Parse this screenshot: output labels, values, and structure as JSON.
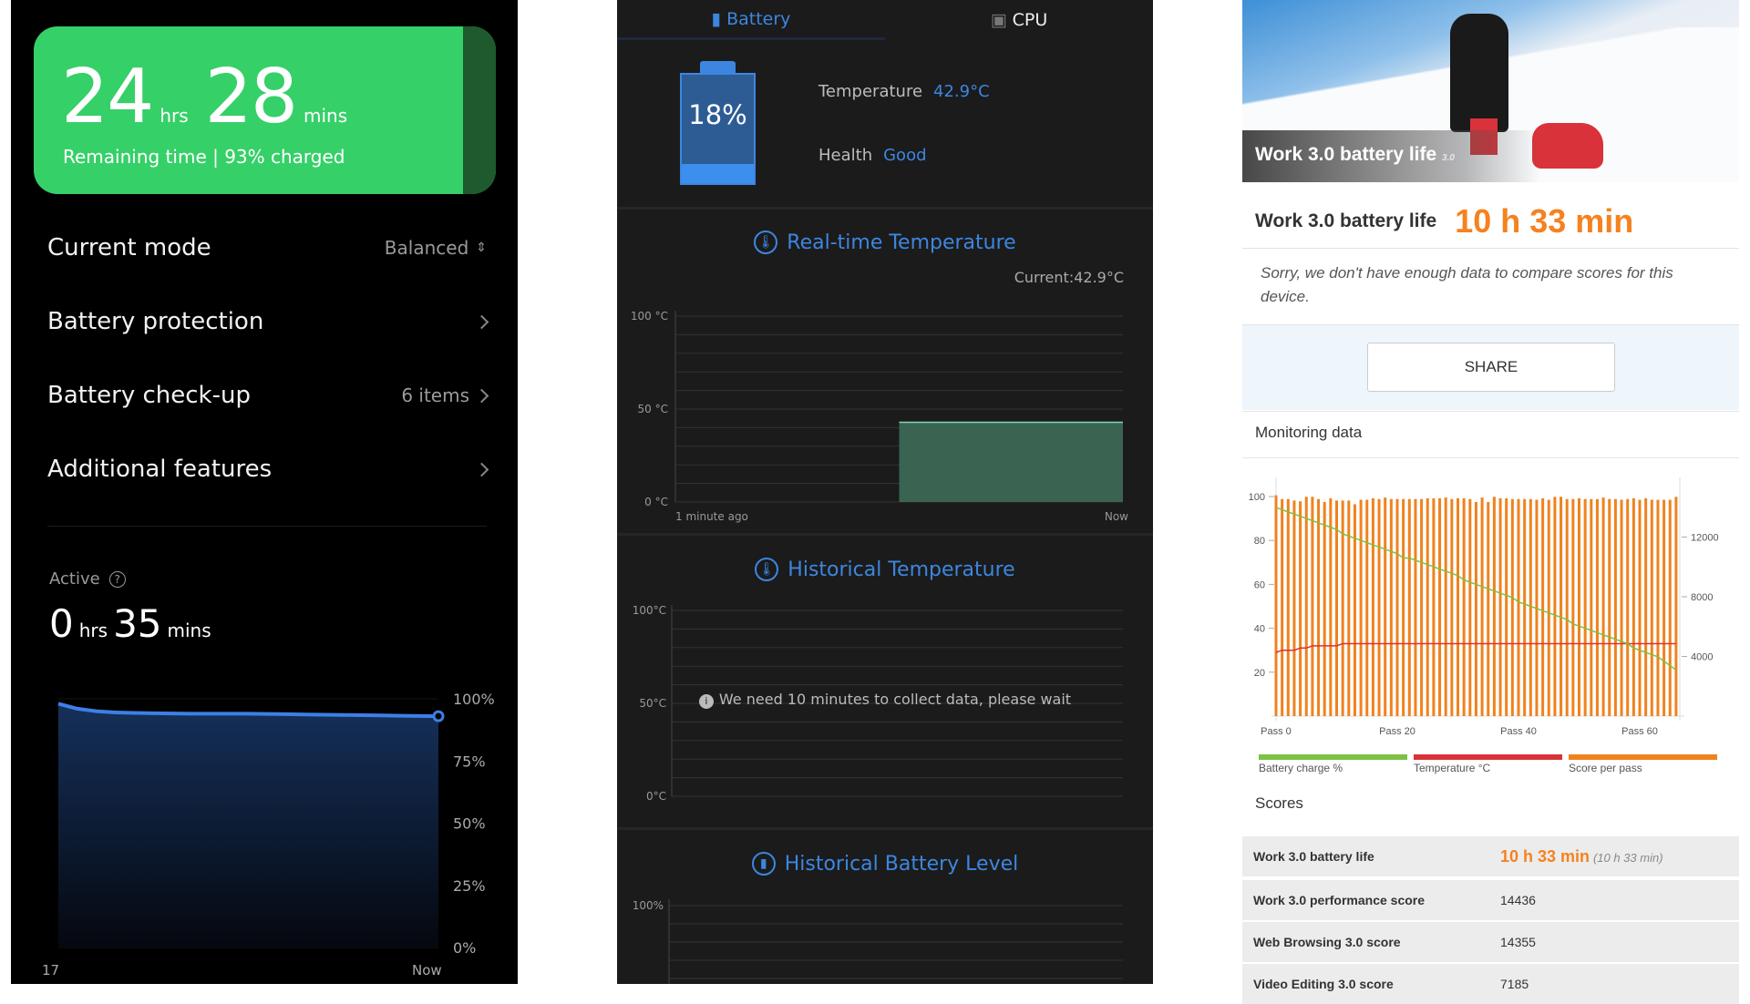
{
  "left": {
    "remaining": {
      "hours": "24",
      "hrs_unit": "hrs",
      "mins": "28",
      "mins_unit": "mins",
      "caption": "Remaining time | 93% charged"
    },
    "rows": [
      {
        "label": "Current mode",
        "value": "Balanced"
      },
      {
        "label": "Battery protection",
        "value": ""
      },
      {
        "label": "Battery check-up",
        "value": "6 items"
      },
      {
        "label": "Additional features",
        "value": ""
      }
    ],
    "active": {
      "label": "Active",
      "hours": "0",
      "hrs_unit": "hrs",
      "mins": "35",
      "mins_unit": "mins"
    },
    "chart_data": {
      "type": "area",
      "x_labels": [
        "17",
        "Now"
      ],
      "y_ticks": [
        "100%",
        "75%",
        "50%",
        "25%",
        "0%"
      ],
      "ylim": [
        0,
        100
      ],
      "values": [
        98,
        96,
        95,
        94.5,
        94.3,
        94.2,
        94.1,
        94,
        94,
        94,
        94,
        93.9,
        93.8,
        93.7,
        93.6,
        93.5,
        93.4,
        93.3,
        93.2,
        93.1,
        93
      ],
      "color": "#3d7fe6"
    }
  },
  "middle": {
    "tabs": [
      {
        "label": "Battery",
        "active": true
      },
      {
        "label": "CPU",
        "active": false
      }
    ],
    "battery_level": "18%",
    "battery_fraction": 0.18,
    "temperature_label": "Temperature",
    "temperature_value": "42.9°C",
    "health_label": "Health",
    "health_value": "Good",
    "realtime": {
      "title": "Real-time Temperature",
      "current": "Current:42.9°C",
      "chart_data": {
        "type": "area",
        "y_ticks": [
          "100 °C",
          "50 °C",
          "0 °C"
        ],
        "ylim": [
          0,
          100
        ],
        "x_labels": [
          "1 minute ago",
          "Now"
        ],
        "values": [
          null,
          42.9
        ],
        "color": "#3a6351"
      }
    },
    "historical_temp": {
      "title": "Historical Temperature",
      "y_ticks": [
        "100°C",
        "50°C",
        "0°C"
      ],
      "message": "We need 10 minutes to collect data, please wait"
    },
    "historical_battery": {
      "title": "Historical Battery Level",
      "y_ticks": [
        "100%"
      ]
    }
  },
  "right": {
    "hero_title": "Work 3.0 battery life",
    "hero_badge": "3.0",
    "result_label": "Work 3.0 battery life",
    "result_value": "10 h 33 min",
    "note": "Sorry, we don't have enough data to compare scores for this device.",
    "share": "SHARE",
    "monitoring_title": "Monitoring data",
    "chart_data": {
      "type": "bar+line",
      "x_ticks": [
        "Pass 0",
        "Pass 20",
        "Pass 40",
        "Pass 60"
      ],
      "left_y_ticks": [
        "100",
        "80",
        "60",
        "40",
        "20"
      ],
      "left_ylim": [
        0,
        110
      ],
      "right_y_ticks": [
        "12000",
        "8000",
        "4000"
      ],
      "right_ylim": [
        0,
        16000
      ],
      "series": [
        {
          "name": "Battery charge %",
          "color": "#7cc242",
          "axis": "left",
          "values": [
            95,
            94,
            93,
            92,
            91,
            90,
            89,
            88,
            87,
            86,
            85,
            83,
            82,
            81,
            80,
            79,
            78,
            77,
            76,
            75,
            74,
            72,
            72,
            71,
            70,
            69,
            68,
            67,
            66,
            65,
            64,
            62,
            61,
            60,
            59,
            58,
            57,
            56,
            55,
            54,
            52,
            51,
            50,
            49,
            48,
            47,
            46,
            45,
            44,
            42,
            41,
            40,
            39,
            38,
            37,
            36,
            35,
            34,
            33,
            31,
            30,
            29,
            28,
            27,
            25,
            23,
            21
          ]
        },
        {
          "name": "Temperature °C",
          "color": "#d9323a",
          "axis": "left",
          "values": [
            29,
            30,
            30,
            30,
            31,
            31,
            32,
            32,
            32,
            32,
            32,
            33,
            33,
            33,
            33,
            33,
            33,
            33,
            33,
            33,
            33,
            33,
            33,
            33,
            33,
            33,
            33,
            33,
            33,
            33,
            33,
            33,
            33,
            33,
            33,
            33,
            33,
            33,
            33,
            33,
            33,
            33,
            33,
            33,
            33,
            33,
            33,
            33,
            33,
            33,
            33,
            33,
            33,
            33,
            33,
            33,
            33,
            33,
            33,
            33,
            33,
            33,
            33,
            33,
            33,
            33,
            33
          ]
        },
        {
          "name": "Score per pass",
          "color": "#f0821e",
          "axis": "right",
          "values": [
            14800,
            14550,
            14550,
            14450,
            14400,
            14700,
            14700,
            14550,
            14350,
            14600,
            14450,
            14450,
            14450,
            14200,
            14500,
            14500,
            14600,
            14550,
            14650,
            14550,
            14550,
            14550,
            14550,
            14550,
            14550,
            14600,
            14600,
            14600,
            14650,
            14550,
            14600,
            14600,
            14550,
            14350,
            14650,
            14350,
            14700,
            14600,
            14600,
            14550,
            14550,
            14550,
            14550,
            14500,
            14600,
            14500,
            14700,
            14700,
            14550,
            14550,
            14600,
            14550,
            14550,
            14550,
            14650,
            14550,
            14550,
            14500,
            14550,
            14600,
            14500,
            14600,
            14500,
            14500,
            14500,
            14500,
            14700
          ]
        }
      ]
    },
    "scores_title": "Scores",
    "scores": [
      {
        "label": "Work 3.0 battery life",
        "value": "10 h 33 min",
        "sub": "(10 h 33 min)"
      },
      {
        "label": "Work 3.0 performance score",
        "value": "14436"
      },
      {
        "label": "Web Browsing 3.0 score",
        "value": "14355"
      },
      {
        "label": "Video Editing 3.0 score",
        "value": "7185"
      }
    ]
  }
}
